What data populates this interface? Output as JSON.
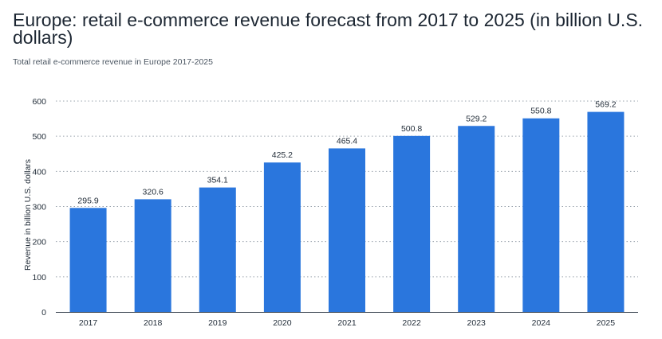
{
  "header": {
    "title": "Europe: retail e-commerce revenue forecast from 2017 to 2025 (in billion U.S. dollars)",
    "subtitle": "Total retail e-commerce revenue in Europe 2017-2025"
  },
  "chart_data": {
    "type": "bar",
    "title": "Europe: retail e-commerce revenue forecast from 2017 to 2025 (in billion U.S. dollars)",
    "subtitle": "Total retail e-commerce revenue in Europe 2017-2025",
    "xlabel": "",
    "ylabel": "Revenue in billion U.S. dollars",
    "categories": [
      "2017",
      "2018",
      "2019",
      "2020",
      "2021",
      "2022",
      "2023",
      "2024",
      "2025"
    ],
    "values": [
      295.9,
      320.6,
      354.1,
      425.2,
      465.4,
      500.8,
      529.2,
      550.8,
      569.2
    ],
    "value_labels": [
      "295.9",
      "320.6",
      "354.1",
      "425.2",
      "465.4",
      "500.8",
      "529.2",
      "550.8",
      "569.2"
    ],
    "yticks": [
      "0",
      "100",
      "200",
      "300",
      "400",
      "500",
      "600"
    ],
    "ylim": [
      0,
      600
    ],
    "grid": true,
    "legend": "none",
    "bar_color": "#2a76dd"
  }
}
